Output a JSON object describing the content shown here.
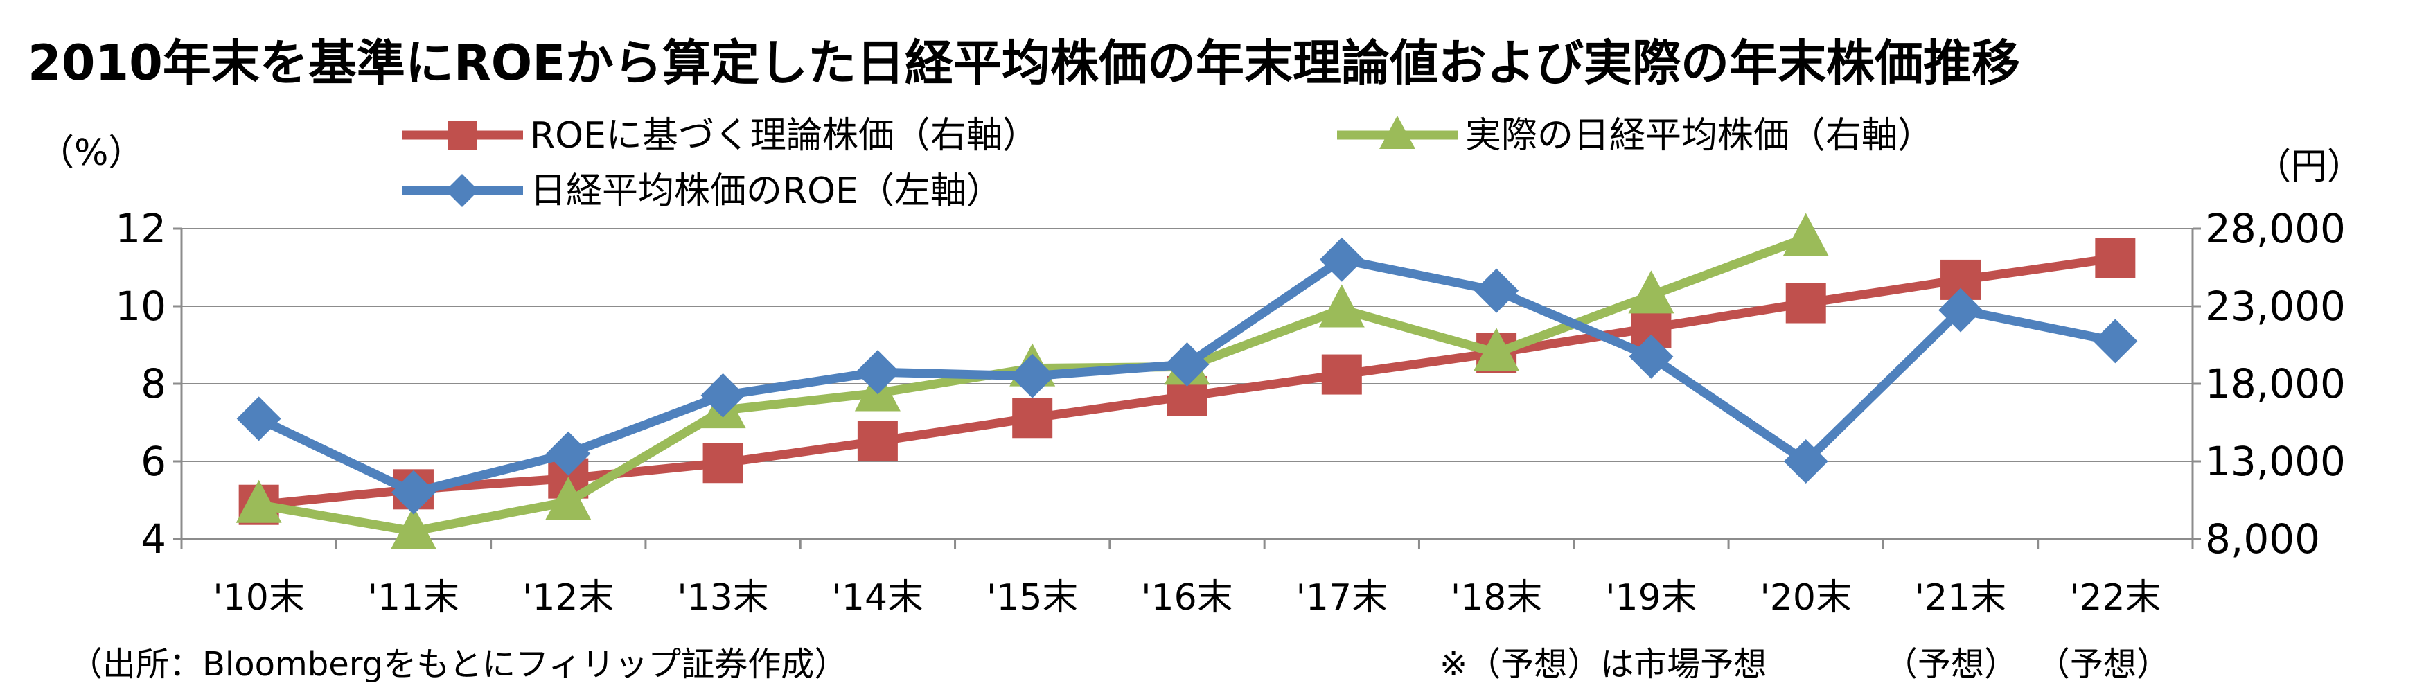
{
  "chart_data": {
    "type": "line",
    "title": "2010年末を基準にROEから算定した日経平均株価の年末理論値および実際の年末株価推移",
    "y_left_unit": "（%）",
    "y_right_unit": "（円）",
    "categories": [
      "'10末",
      "'11末",
      "'12末",
      "'13末",
      "'14末",
      "'15末",
      "'16末",
      "'17末",
      "'18末",
      "'19末",
      "'20末",
      "'21末",
      "'22末"
    ],
    "y_left": {
      "ticks": [
        "4",
        "6",
        "8",
        "10",
        "12"
      ],
      "ylim": [
        4,
        12
      ]
    },
    "y_right": {
      "ticks": [
        "8,000",
        "13,000",
        "18,000",
        "23,000",
        "28,000"
      ],
      "ylim": [
        8000,
        28000
      ]
    },
    "grid": true,
    "legend_placement": "top",
    "series": [
      {
        "name": "ROEに基づく理論株価（右軸）",
        "axis": "right",
        "marker": "square",
        "color": "#c0504d",
        "values": [
          10200,
          11200,
          11900,
          12900,
          14300,
          15800,
          17200,
          18600,
          20000,
          21600,
          23200,
          24700,
          26100
        ]
      },
      {
        "name": "実際の日経平均株価（右軸）",
        "axis": "right",
        "marker": "triangle",
        "color": "#9bbb59",
        "values": [
          10200,
          8500,
          10400,
          16300,
          17400,
          19000,
          19100,
          22800,
          20000,
          23700,
          27400,
          null,
          null
        ]
      },
      {
        "name": "日経平均株価のROE（左軸）",
        "axis": "left",
        "marker": "diamond",
        "color": "#4f81bd",
        "values": [
          7.1,
          5.2,
          6.2,
          7.7,
          8.3,
          8.2,
          8.5,
          11.2,
          10.4,
          8.7,
          6.0,
          9.9,
          9.1
        ]
      }
    ]
  },
  "source_note": "（出所：Bloombergをもとにフィリップ証券作成）",
  "forecast_note": "※（予想）は市場予想",
  "forecast_labels": [
    "（予想）",
    "（予想）"
  ]
}
